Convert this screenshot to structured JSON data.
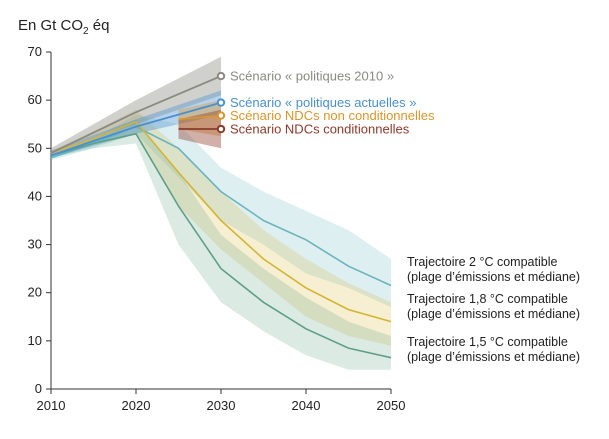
{
  "chart_data": {
    "type": "line",
    "unit_label": {
      "prefix": "En Gt CO",
      "sub": "2",
      "suffix": " éq"
    },
    "xlim": [
      2010,
      2050
    ],
    "ylim": [
      0,
      70
    ],
    "x_ticks": [
      2010,
      2020,
      2030,
      2040,
      2050
    ],
    "y_ticks": [
      0,
      10,
      20,
      30,
      40,
      50,
      60,
      70
    ],
    "colors": {
      "policies_2010": "#8a8a80",
      "current_policies": "#4a90d0",
      "ndc_unconditional": "#d9962a",
      "ndc_conditional": "#8b3a2a",
      "traj_2c": "#6ab5bd",
      "traj_1_8c": "#d4b433",
      "traj_1_5c": "#5f9f86"
    },
    "series": [
      {
        "id": "policies_2010",
        "name": "Scénario « politiques 2010 »",
        "x": [
          2010,
          2020,
          2030
        ],
        "values": [
          49,
          57.5,
          65
        ],
        "band_low": [
          49,
          55,
          61
        ],
        "band_high": [
          50,
          60,
          69
        ]
      },
      {
        "id": "current_policies",
        "name": "Scénario « politiques actuelles »",
        "x": [
          2010,
          2020,
          2030
        ],
        "values": [
          48.5,
          54.5,
          59.5
        ],
        "band_low": [
          48,
          53,
          57
        ],
        "band_high": [
          49.5,
          56,
          62
        ]
      },
      {
        "id": "ndc_unconditional",
        "name": "Scénario NDCs non conditionnelles",
        "x": [
          2025,
          2030
        ],
        "values": [
          56,
          56.8
        ],
        "band_low": [
          54,
          52.5
        ],
        "band_high": [
          58,
          60
        ]
      },
      {
        "id": "ndc_conditional",
        "name": "Scénario NDCs conditionnelles",
        "x": [
          2025,
          2030
        ],
        "values": [
          54,
          54
        ],
        "band_low": [
          52,
          50
        ],
        "band_high": [
          56,
          58
        ]
      }
    ],
    "trajectories": [
      {
        "id": "traj_2c",
        "name_line1": "Trajectoire 2 °C compatible",
        "name_line2": "(plage d’émissions et médiane)",
        "x": [
          2010,
          2015,
          2020,
          2025,
          2030,
          2035,
          2040,
          2045,
          2050
        ],
        "median": [
          48,
          51,
          54.5,
          50,
          41,
          35,
          31,
          25.5,
          21.5
        ],
        "band_low": [
          47.5,
          50,
          53,
          44,
          35,
          30,
          24,
          21,
          17
        ],
        "band_high": [
          48.5,
          52,
          57,
          55,
          46,
          41,
          37,
          33,
          27
        ]
      },
      {
        "id": "traj_1_8c",
        "name_line1": "Trajectoire 1,8 °C compatible",
        "name_line2": "(plage d’émissions et médiane)",
        "x": [
          2010,
          2015,
          2020,
          2025,
          2030,
          2035,
          2040,
          2045,
          2050
        ],
        "median": [
          49,
          52,
          55.5,
          45,
          35,
          27,
          21,
          16.5,
          14
        ],
        "band_low": [
          48.5,
          51,
          53,
          38,
          29,
          22,
          15,
          11,
          9
        ],
        "band_high": [
          49.5,
          53.5,
          58,
          50,
          41,
          33,
          27,
          22,
          18
        ]
      },
      {
        "id": "traj_1_5c",
        "name_line1": "Trajectoire 1,5 °C compatible",
        "name_line2": "(plage d’émissions et médiane)",
        "x": [
          2010,
          2015,
          2020,
          2025,
          2030,
          2035,
          2040,
          2045,
          2050
        ],
        "median": [
          48.5,
          51,
          53,
          38,
          25,
          18,
          12.5,
          8.5,
          6.5
        ],
        "band_low": [
          48,
          50,
          51,
          30,
          18,
          12,
          7,
          4,
          4
        ],
        "band_high": [
          49,
          52,
          56,
          45,
          32,
          25,
          19,
          14,
          11
        ]
      }
    ]
  }
}
